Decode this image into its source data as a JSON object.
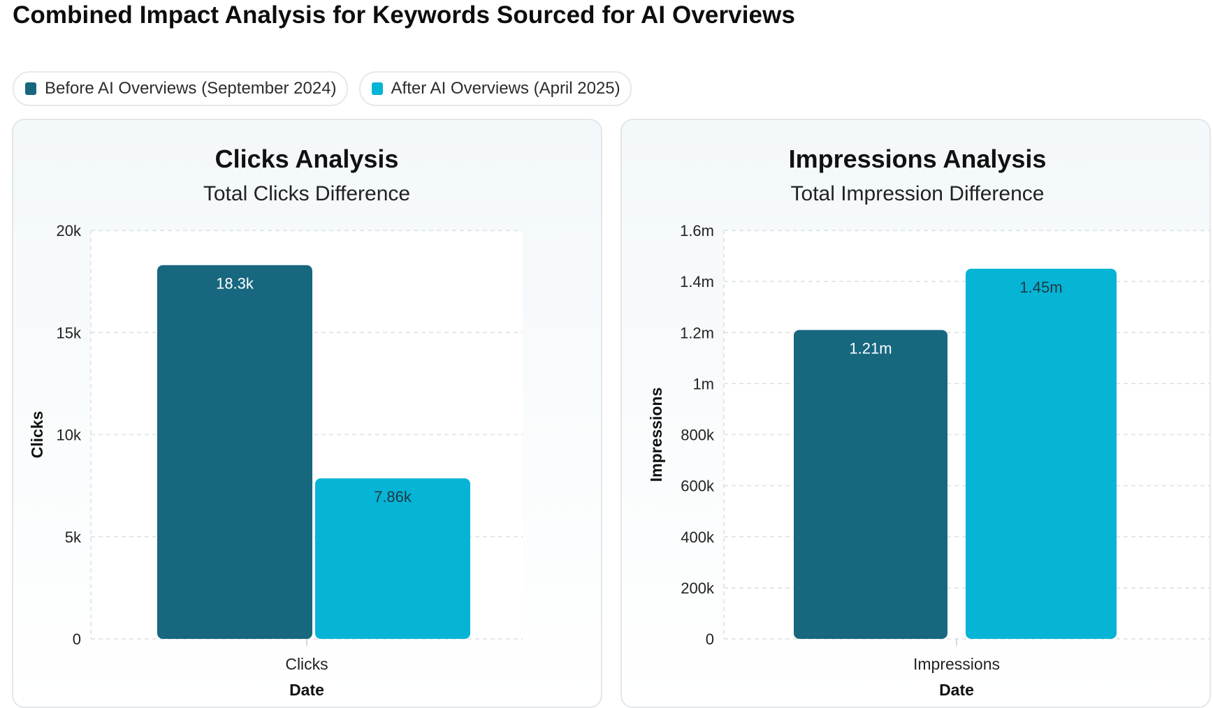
{
  "page": {
    "title": "Combined Impact Analysis for Keywords Sourced for AI Overviews"
  },
  "legend": [
    {
      "label": "Before AI Overviews (September 2024)",
      "color": "#17677f"
    },
    {
      "label": "After AI Overviews (April 2025)",
      "color": "#06b4d5"
    }
  ],
  "colors": {
    "before": "#17677f",
    "after": "#06b4d5",
    "grid": "#dcdfe2",
    "plot_bg": "#ffffff"
  },
  "chart_data": [
    {
      "type": "bar",
      "title": "Clicks Analysis",
      "subtitle": "Total Clicks Difference",
      "categories": [
        "Clicks"
      ],
      "series": [
        {
          "name": "Before AI Overviews (September 2024)",
          "values": [
            18300
          ],
          "label": "18.3k"
        },
        {
          "name": "After AI Overviews (April 2025)",
          "values": [
            7860
          ],
          "label": "7.86k"
        }
      ],
      "ylim": [
        0,
        20000
      ],
      "yticks": [
        0,
        5000,
        10000,
        15000,
        20000
      ],
      "ytick_labels": [
        "0",
        "5k",
        "10k",
        "15k",
        "20k"
      ],
      "ylabel": "Clicks",
      "xlabel": "Date",
      "grid": true
    },
    {
      "type": "bar",
      "title": "Impressions Analysis",
      "subtitle": "Total Impression Difference",
      "categories": [
        "Impressions"
      ],
      "series": [
        {
          "name": "Before AI Overviews (September 2024)",
          "values": [
            1210000
          ],
          "label": "1.21m"
        },
        {
          "name": "After AI Overviews (April 2025)",
          "values": [
            1450000
          ],
          "label": "1.45m"
        }
      ],
      "ylim": [
        0,
        1600000
      ],
      "yticks": [
        0,
        200000,
        400000,
        600000,
        800000,
        1000000,
        1200000,
        1400000,
        1600000
      ],
      "ytick_labels": [
        "0",
        "200k",
        "400k",
        "600k",
        "800k",
        "1m",
        "1.2m",
        "1.4m",
        "1.6m"
      ],
      "ylabel": "Impressions",
      "xlabel": "Date",
      "grid": true
    }
  ]
}
